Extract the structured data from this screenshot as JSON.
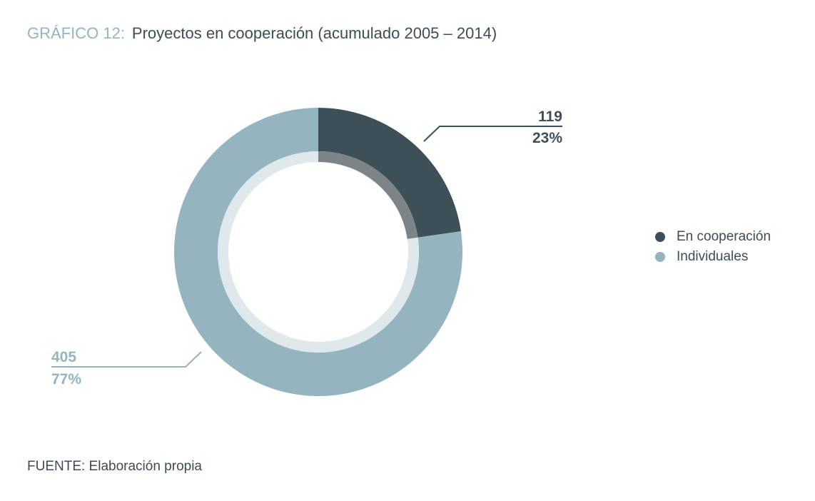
{
  "title": {
    "prefix": "GRÁFICO 12:",
    "text": "Proyectos en cooperación (acumulado 2005 – 2014)"
  },
  "colors": {
    "cooperacion": "#3d4f57",
    "individuales": "#94b4c0",
    "inner_cooperacion": "#7c8487",
    "inner_individuales": "#dfe8eb"
  },
  "chart_data": {
    "type": "pie",
    "subtype": "donut",
    "title": "Proyectos en cooperación (acumulado 2005 – 2014)",
    "slices": [
      {
        "name": "En cooperación",
        "value": 119,
        "percent_label": "23%"
      },
      {
        "name": "Individuales",
        "value": 405,
        "percent_label": "77%"
      }
    ],
    "legend_placement": "right"
  },
  "source": "FUENTE: Elaboración propia"
}
